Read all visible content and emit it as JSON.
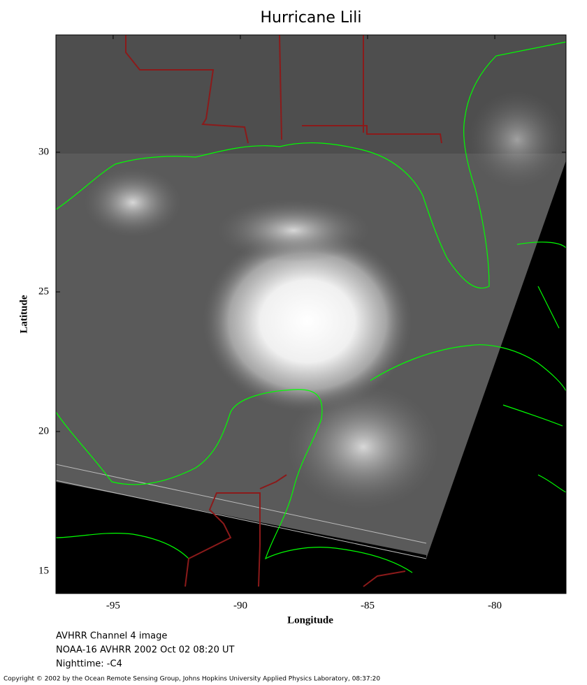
{
  "map": {
    "title": "Hurricane Lili",
    "xlabel": "Longitude",
    "ylabel": "Latitude",
    "xlim": [
      -97.25,
      -77.2
    ],
    "ylim": [
      14.2,
      34.2
    ],
    "xticks": [
      -95,
      -90,
      -85,
      -80
    ],
    "yticks": [
      15,
      20,
      25,
      30
    ]
  },
  "captions": [
    "AVHRR Channel 4 image",
    "NOAA-16 AVHRR 2002 Oct 02 08:20 UT",
    "Nighttime: -C4"
  ],
  "copyright": "Copyright © 2002 by the Ocean Remote Sensing Group, Johns Hopkins University Applied Physics Laboratory, 08:37:20"
}
